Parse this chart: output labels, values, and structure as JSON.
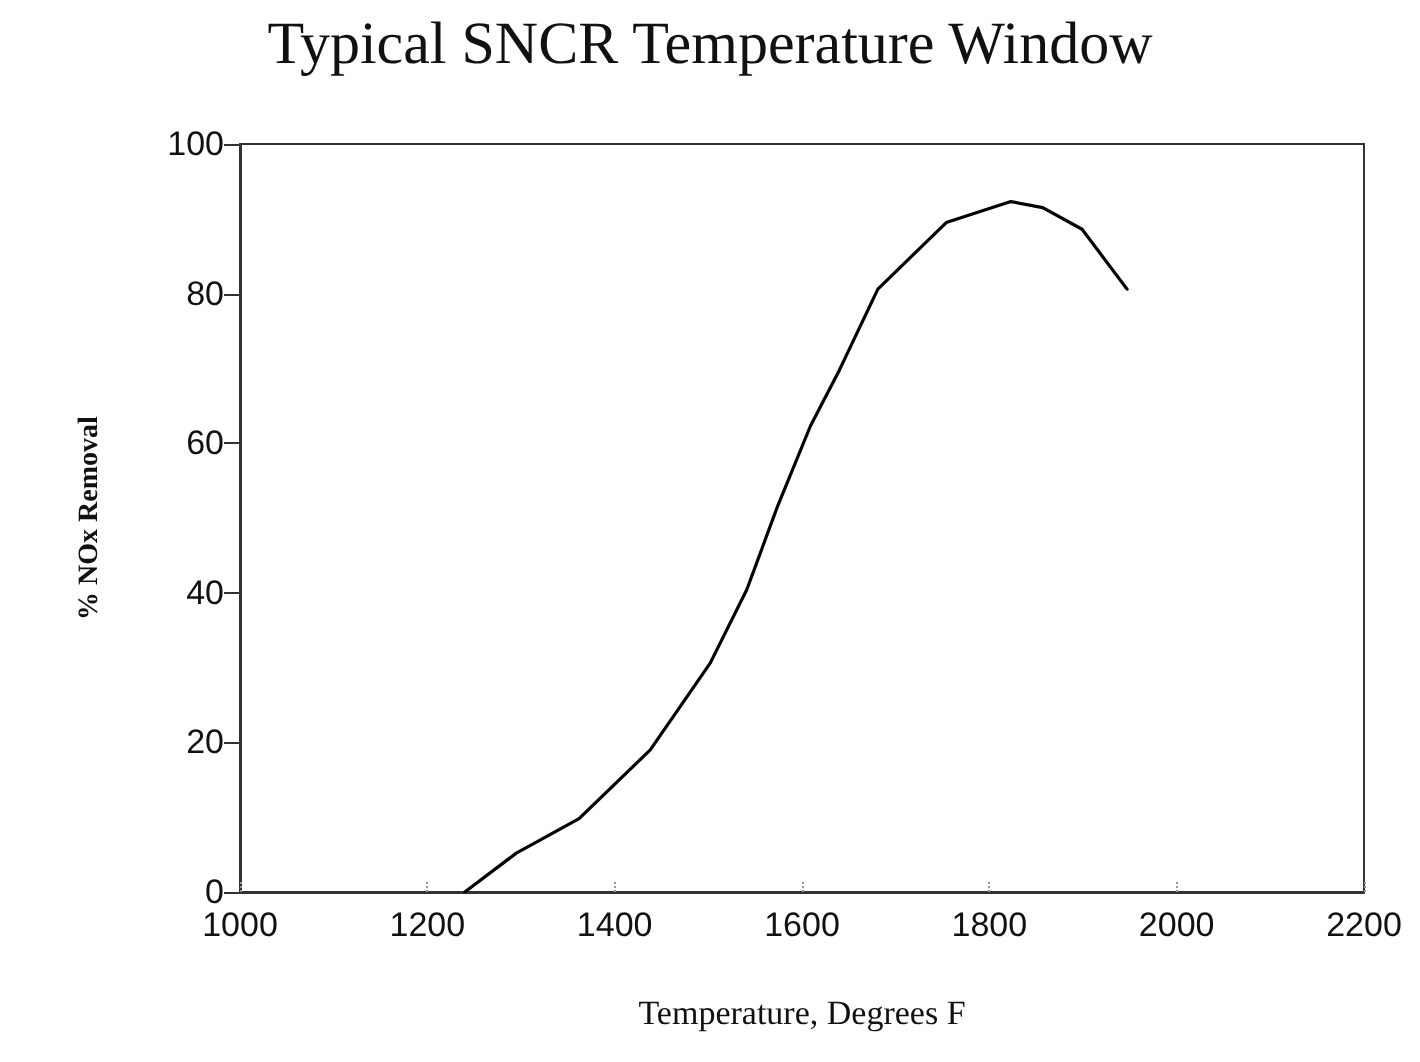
{
  "chart_data": {
    "type": "line",
    "title": "Typical SNCR Temperature Window",
    "xlabel": "Temperature, Degrees F",
    "ylabel": "% NOx Removal",
    "x": [
      1240,
      1295,
      1362,
      1438,
      1502,
      1541,
      1574,
      1609,
      1640,
      1681,
      1754,
      1823,
      1857,
      1899,
      1947
    ],
    "series": [
      {
        "color": "#000000",
        "values": [
          0,
          5.2,
          9.8,
          19,
          30.6,
          40.4,
          51.6,
          62.3,
          69.8,
          80.6,
          89.5,
          92.3,
          91.5,
          88.6,
          80.6
        ]
      }
    ],
    "xlim": [
      1000,
      2200
    ],
    "xticks": [
      1000,
      1200,
      1400,
      1600,
      1800,
      2000,
      2200
    ],
    "ylim": [
      0,
      100
    ],
    "yticks": [
      0,
      20,
      40,
      60,
      80,
      100
    ],
    "grid": false,
    "marker": "none",
    "line_style": "solid"
  }
}
